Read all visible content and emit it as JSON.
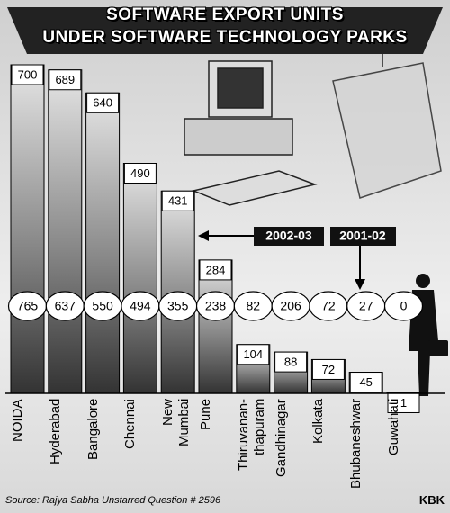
{
  "chart_data": {
    "type": "bar",
    "title": "SOFTWARE EXPORT UNITS\nUNDER SOFTWARE TECHNOLOGY PARKS",
    "categories": [
      "NOIDA",
      "Hyderabad",
      "Bangalore",
      "Chennai",
      "New\nMumbai",
      "Pune",
      "Thiruvanan-\nthapuram",
      "Gandhinagar",
      "Kolkata",
      "Bhubaneshwar",
      "Guwahati"
    ],
    "series": [
      {
        "name": "2002-03",
        "values": [
          700,
          689,
          640,
          490,
          431,
          284,
          104,
          88,
          72,
          45,
          1
        ]
      },
      {
        "name": "2001-02",
        "values": [
          765,
          637,
          550,
          494,
          355,
          238,
          82,
          206,
          72,
          27,
          0
        ]
      }
    ],
    "source": "Source: Rajya Sabha Unstarred Question # 2596",
    "credit": "KBK"
  }
}
